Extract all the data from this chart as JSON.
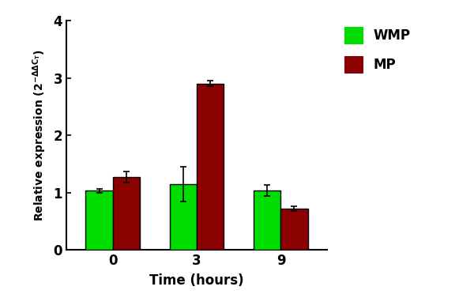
{
  "time_points": [
    0,
    3,
    9
  ],
  "wmp_values": [
    1.03,
    1.15,
    1.04
  ],
  "mp_values": [
    1.27,
    2.9,
    0.72
  ],
  "wmp_errors": [
    0.03,
    0.3,
    0.1
  ],
  "mp_errors": [
    0.1,
    0.05,
    0.04
  ],
  "wmp_color": "#00DD00",
  "mp_color": "#8B0000",
  "bar_width": 0.32,
  "ylim": [
    0,
    4
  ],
  "yticks": [
    0,
    1,
    2,
    3,
    4
  ],
  "xtick_labels": [
    "0",
    "3",
    "9"
  ],
  "xlabel": "Time (hours)",
  "legend_labels": [
    "WMP",
    "MP"
  ],
  "background_color": "#ffffff",
  "error_capsize": 3,
  "edge_color": "black",
  "edge_width": 1.0,
  "tick_fontsize": 12,
  "label_fontsize": 12,
  "legend_fontsize": 12
}
